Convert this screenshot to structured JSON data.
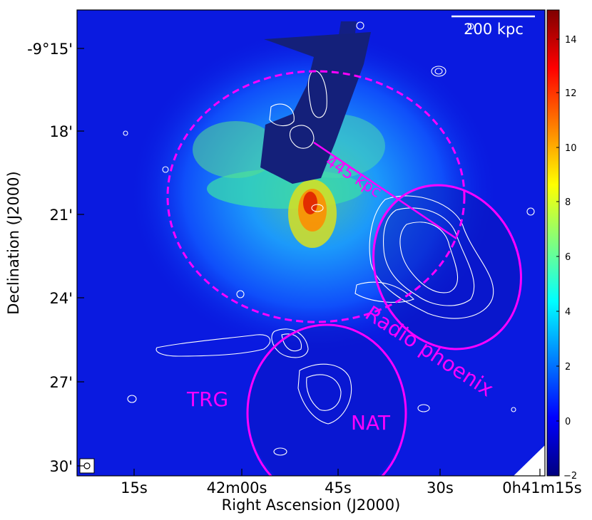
{
  "axes": {
    "xlabel": "Right Ascension (J2000)",
    "ylabel": "Declination (J2000)",
    "xticks": [
      "15s",
      "42m00s",
      "45s",
      "30s",
      "0h41m15s"
    ],
    "yticks": [
      "-9°15'",
      "18'",
      "21'",
      "24'",
      "27'",
      "30'"
    ]
  },
  "colorbar": {
    "ticks": [
      "14",
      "12",
      "10",
      "8",
      "6",
      "4",
      "2",
      "0",
      "−2"
    ],
    "colormap": "jet",
    "range": [
      -2,
      15
    ]
  },
  "annotations": {
    "scalebar": "200 kpc",
    "distance": "445 kpc",
    "phoenix": "Radio phoenix",
    "trg": "TRG",
    "nat": "NAT"
  },
  "colors": {
    "annotation": "#ff00ff",
    "contour": "#ffffff",
    "background_map": "#0a1ae0"
  }
}
